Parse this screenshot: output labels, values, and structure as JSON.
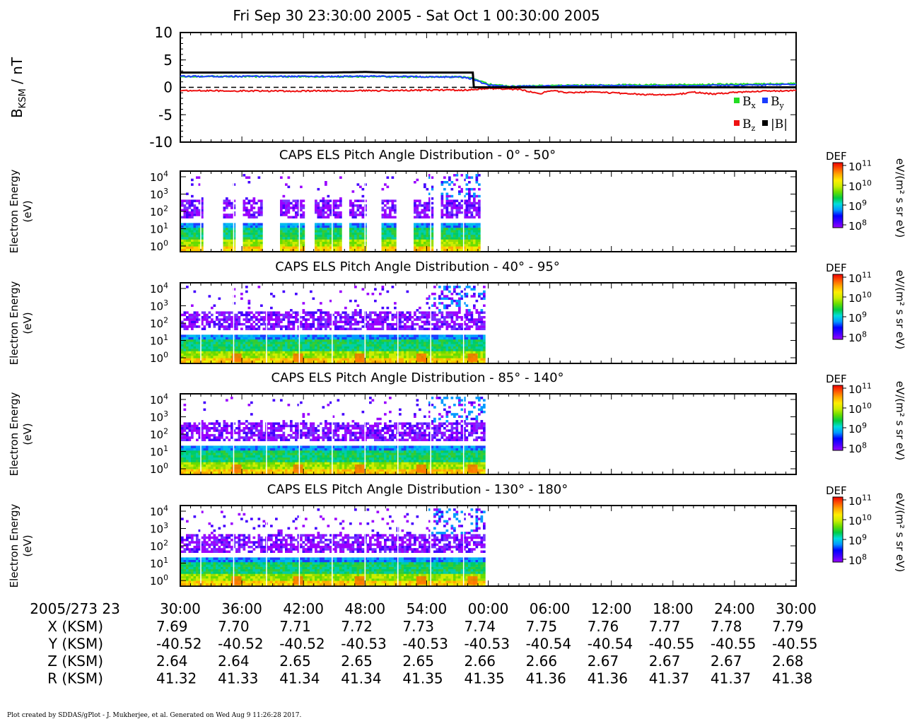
{
  "page_title": "Fri Sep 30 23:30:00 2005 - Sat Oct 1 00:30:00 2005",
  "footer": "Plot created by SDDAS/gPlot - J. Mukherjee, et al.  Generated on Wed Aug 9 11:26:28 2017.",
  "colors": {
    "bx": "#22dd22",
    "by": "#1a3cff",
    "bz": "#ee1111",
    "btot": "#000000",
    "colorbar_stops": [
      "#9a00ff",
      "#4400ff",
      "#0000ff",
      "#0099ff",
      "#00dddd",
      "#00cc44",
      "#66dd00",
      "#ccee00",
      "#ffee00",
      "#ffaa00",
      "#ff5500",
      "#ee0000"
    ]
  },
  "chart_data": [
    {
      "type": "line",
      "ylabel_main": "B",
      "ylabel_sub": "KSM",
      "ylabel_unit": " / nT",
      "ylim": [
        -10,
        10
      ],
      "yticks": [
        10,
        5,
        0,
        -5,
        -10
      ],
      "x_range_min": [
        0,
        60
      ],
      "zero_line": "dashed",
      "legend_position": "bottom-right",
      "series": [
        {
          "name": "B",
          "sub": "x",
          "color_key": "bx",
          "x_min": [
            0,
            25,
            26,
            27,
            28,
            28.5,
            30,
            32,
            35,
            40,
            50,
            55,
            60
          ],
          "values": [
            2.0,
            1.9,
            1.9,
            1.9,
            1.8,
            1.6,
            0.6,
            0.2,
            0.3,
            0.4,
            0.5,
            0.6,
            0.7
          ]
        },
        {
          "name": "B",
          "sub": "y",
          "color_key": "by",
          "x_min": [
            0,
            20,
            26,
            27,
            28,
            28.5,
            30,
            32,
            35,
            40,
            50,
            55,
            60
          ],
          "values": [
            2.0,
            2.0,
            1.9,
            1.9,
            1.7,
            1.5,
            0.4,
            0.1,
            0.2,
            0.3,
            0.3,
            0.4,
            0.5
          ]
        },
        {
          "name": "B",
          "sub": "z",
          "color_key": "bz",
          "x_min": [
            0,
            10,
            20,
            26,
            28,
            30,
            33,
            35,
            36,
            38,
            40,
            45,
            48,
            50,
            52,
            55,
            60
          ],
          "values": [
            -0.6,
            -0.7,
            -0.6,
            -0.5,
            -0.5,
            -0.2,
            -0.4,
            -1.2,
            -0.6,
            -1.0,
            -0.8,
            -1.3,
            -1.4,
            -0.9,
            -1.2,
            -0.8,
            -0.6
          ]
        },
        {
          "name": "|B|",
          "sub": "",
          "color_key": "btot",
          "x_min": [
            0,
            10,
            15,
            18,
            20,
            25,
            28.5,
            28.6,
            60
          ],
          "values": [
            2.7,
            2.7,
            2.7,
            2.8,
            2.7,
            2.7,
            2.7,
            0.0,
            0.0
          ]
        }
      ]
    },
    {
      "type": "heatmap",
      "title": "CAPS ELS Pitch Angle Distribution - 0° - 50°",
      "ylabel": [
        "Electron Energy",
        "(eV)"
      ],
      "y_scale": "log",
      "yticks": [
        {
          "b": "10",
          "e": "4"
        },
        {
          "b": "10",
          "e": "3"
        },
        {
          "b": "10",
          "e": "2"
        },
        {
          "b": "10",
          "e": "1"
        },
        {
          "b": "10",
          "e": "0"
        }
      ],
      "y_ticks_count": 5,
      "data_end_min": 29.2,
      "gaps_min": [
        [
          2.0,
          4.0
        ],
        [
          5.3,
          6.0
        ],
        [
          8.0,
          9.6
        ],
        [
          12.0,
          12.9
        ],
        [
          15.5,
          16.4
        ],
        [
          18.0,
          19.5
        ],
        [
          21.0,
          21.8
        ],
        [
          22.0,
          22.5
        ],
        [
          24.5,
          25.3
        ]
      ],
      "colorbar": {
        "label": "DEF",
        "unit": "eV/(m² s sr eV)",
        "ticks": [
          {
            "b": "10",
            "e": "11"
          },
          {
            "b": "10",
            "e": "10"
          },
          {
            "b": "10",
            "e": "9"
          },
          {
            "b": "10",
            "e": "8"
          }
        ]
      }
    },
    {
      "type": "heatmap",
      "title": "CAPS ELS Pitch Angle Distribution - 40° - 95°",
      "ylabel": [
        "Electron Energy",
        "(eV)"
      ],
      "y_scale": "log",
      "yticks": [
        {
          "b": "10",
          "e": "4"
        },
        {
          "b": "10",
          "e": "3"
        },
        {
          "b": "10",
          "e": "2"
        },
        {
          "b": "10",
          "e": "1"
        },
        {
          "b": "10",
          "e": "0"
        }
      ],
      "y_ticks_count": 5,
      "data_end_min": 29.6,
      "gaps_min": [],
      "colorbar": {
        "label": "DEF",
        "unit": "eV/(m² s sr eV)",
        "ticks": [
          {
            "b": "10",
            "e": "11"
          },
          {
            "b": "10",
            "e": "10"
          },
          {
            "b": "10",
            "e": "9"
          },
          {
            "b": "10",
            "e": "8"
          }
        ]
      }
    },
    {
      "type": "heatmap",
      "title": "CAPS ELS Pitch Angle Distribution - 85° - 140°",
      "ylabel": [
        "Electron Energy",
        "(eV)"
      ],
      "y_scale": "log",
      "yticks": [
        {
          "b": "10",
          "e": "4"
        },
        {
          "b": "10",
          "e": "3"
        },
        {
          "b": "10",
          "e": "2"
        },
        {
          "b": "10",
          "e": "1"
        },
        {
          "b": "10",
          "e": "0"
        }
      ],
      "y_ticks_count": 5,
      "data_end_min": 29.6,
      "gaps_min": [],
      "colorbar": {
        "label": "DEF",
        "unit": "eV/(m² s sr eV)",
        "ticks": [
          {
            "b": "10",
            "e": "11"
          },
          {
            "b": "10",
            "e": "10"
          },
          {
            "b": "10",
            "e": "9"
          },
          {
            "b": "10",
            "e": "8"
          }
        ]
      }
    },
    {
      "type": "heatmap",
      "title": "CAPS ELS Pitch Angle Distribution - 130° - 180°",
      "ylabel": [
        "Electron Energy",
        "(eV)"
      ],
      "y_scale": "log",
      "yticks": [
        {
          "b": "10",
          "e": "4"
        },
        {
          "b": "10",
          "e": "3"
        },
        {
          "b": "10",
          "e": "2"
        },
        {
          "b": "10",
          "e": "1"
        },
        {
          "b": "10",
          "e": "0"
        }
      ],
      "y_ticks_count": 5,
      "data_end_min": 29.6,
      "gaps_min": [],
      "colorbar": {
        "label": "DEF",
        "unit": "eV/(m² s sr eV)",
        "ticks": [
          {
            "b": "10",
            "e": "11"
          },
          {
            "b": "10",
            "e": "10"
          },
          {
            "b": "10",
            "e": "9"
          },
          {
            "b": "10",
            "e": "8"
          }
        ]
      }
    }
  ],
  "x_axis": {
    "date_label": "2005/273 23",
    "tick_labels": [
      "30:00",
      "36:00",
      "42:00",
      "48:00",
      "54:00",
      "00:00",
      "06:00",
      "12:00",
      "18:00",
      "24:00",
      "30:00"
    ],
    "ticks_min": [
      0,
      6,
      12,
      18,
      24,
      30,
      36,
      42,
      48,
      54,
      60
    ]
  },
  "ephemeris": [
    {
      "label": "X (KSM)",
      "values": [
        "7.69",
        "7.70",
        "7.71",
        "7.72",
        "7.73",
        "7.74",
        "7.75",
        "7.76",
        "7.77",
        "7.78",
        "7.79"
      ]
    },
    {
      "label": "Y (KSM)",
      "values": [
        "-40.52",
        "-40.52",
        "-40.52",
        "-40.53",
        "-40.53",
        "-40.53",
        "-40.54",
        "-40.54",
        "-40.55",
        "-40.55",
        "-40.55"
      ]
    },
    {
      "label": "Z (KSM)",
      "values": [
        "2.64",
        "2.64",
        "2.65",
        "2.65",
        "2.65",
        "2.66",
        "2.66",
        "2.67",
        "2.67",
        "2.67",
        "2.68"
      ]
    },
    {
      "label": "R (KSM)",
      "values": [
        "41.32",
        "41.33",
        "41.34",
        "41.34",
        "41.35",
        "41.35",
        "41.36",
        "41.36",
        "41.37",
        "41.37",
        "41.38"
      ]
    }
  ]
}
